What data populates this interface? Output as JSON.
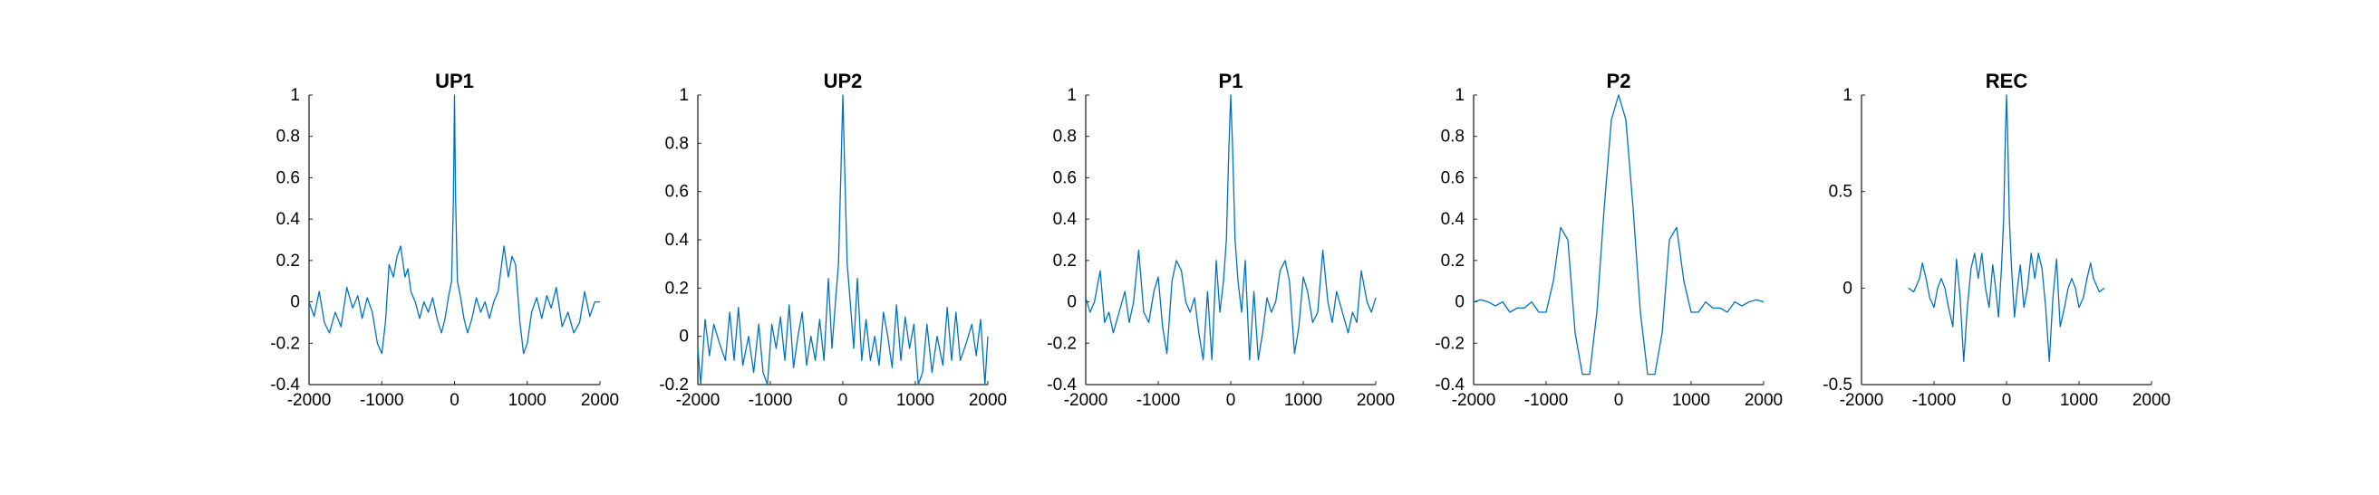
{
  "chart_data": [
    {
      "type": "line",
      "title": "UP1",
      "xlim": [
        -2000,
        2000
      ],
      "ylim": [
        -0.4,
        1
      ],
      "xticks": [
        -2000,
        -1000,
        0,
        1000,
        2000
      ],
      "yticks": [
        -0.4,
        -0.2,
        0,
        0.2,
        0.4,
        0.6,
        0.8,
        1
      ],
      "xtick_labels": [
        "-2000",
        "-1000",
        "0",
        "1000",
        "2000"
      ],
      "ytick_labels": [
        "-0.4",
        "-0.2",
        "0",
        "0.2",
        "0.4",
        "0.6",
        "0.8",
        "1"
      ],
      "line_color": "#0072BD",
      "series": [
        {
          "x": [
            -2000,
            -1930,
            -1860,
            -1790,
            -1720,
            -1640,
            -1560,
            -1480,
            -1400,
            -1330,
            -1270,
            -1200,
            -1130,
            -1060,
            -1000,
            -950,
            -900,
            -840,
            -790,
            -740,
            -680,
            -640,
            -600,
            -540,
            -480,
            -420,
            -360,
            -300,
            -240,
            -180,
            -130,
            -80,
            -40,
            -15,
            0,
            15,
            40,
            80,
            130,
            180,
            240,
            300,
            360,
            420,
            480,
            540,
            600,
            640,
            680,
            740,
            790,
            840,
            900,
            950,
            1000,
            1060,
            1130,
            1200,
            1270,
            1330,
            1400,
            1480,
            1560,
            1640,
            1720,
            1790,
            1860,
            1930,
            2000
          ],
          "y": [
            0.0,
            -0.07,
            0.05,
            -0.1,
            -0.15,
            -0.05,
            -0.12,
            0.07,
            -0.03,
            0.03,
            -0.08,
            0.02,
            -0.05,
            -0.2,
            -0.25,
            -0.1,
            0.18,
            0.12,
            0.22,
            0.27,
            0.12,
            0.16,
            0.05,
            0.0,
            -0.08,
            0.0,
            -0.05,
            0.02,
            -0.08,
            -0.15,
            -0.08,
            0.03,
            0.1,
            0.5,
            1.0,
            0.5,
            0.1,
            0.03,
            -0.08,
            -0.15,
            -0.08,
            0.02,
            -0.05,
            0.0,
            -0.08,
            0.0,
            0.05,
            0.16,
            0.27,
            0.12,
            0.22,
            0.18,
            -0.1,
            -0.25,
            -0.2,
            -0.05,
            0.02,
            -0.08,
            0.03,
            -0.03,
            0.07,
            -0.12,
            -0.05,
            -0.15,
            -0.1,
            0.05,
            -0.07,
            0.0,
            0.0
          ]
        }
      ]
    },
    {
      "type": "line",
      "title": "UP2",
      "xlim": [
        -2000,
        2000
      ],
      "ylim": [
        -0.2,
        1
      ],
      "xticks": [
        -2000,
        -1000,
        0,
        1000,
        2000
      ],
      "yticks": [
        -0.2,
        0,
        0.2,
        0.4,
        0.6,
        0.8,
        1
      ],
      "xtick_labels": [
        "-2000",
        "-1000",
        "0",
        "1000",
        "2000"
      ],
      "ytick_labels": [
        "-0.2",
        "0",
        "0.2",
        "0.4",
        "0.6",
        "0.8",
        "1"
      ],
      "line_color": "#0072BD",
      "series": [
        {
          "x": [
            -2000,
            -1960,
            -1900,
            -1840,
            -1780,
            -1700,
            -1620,
            -1560,
            -1500,
            -1440,
            -1380,
            -1300,
            -1230,
            -1160,
            -1100,
            -1040,
            -980,
            -920,
            -860,
            -800,
            -740,
            -680,
            -620,
            -560,
            -500,
            -440,
            -380,
            -320,
            -260,
            -200,
            -150,
            -100,
            -60,
            -25,
            0,
            25,
            60,
            100,
            150,
            200,
            260,
            320,
            380,
            440,
            500,
            560,
            620,
            680,
            740,
            800,
            860,
            920,
            980,
            1040,
            1100,
            1160,
            1230,
            1300,
            1380,
            1440,
            1500,
            1560,
            1620,
            1700,
            1780,
            1840,
            1900,
            1960,
            2000
          ],
          "y": [
            -0.05,
            -0.2,
            0.07,
            -0.08,
            0.05,
            -0.03,
            -0.1,
            0.1,
            -0.1,
            0.12,
            -0.12,
            0.0,
            -0.15,
            0.05,
            -0.15,
            -0.2,
            0.05,
            -0.05,
            0.08,
            -0.1,
            0.13,
            -0.13,
            0.0,
            0.1,
            -0.12,
            0.0,
            -0.1,
            0.07,
            -0.1,
            0.24,
            -0.05,
            0.15,
            0.3,
            0.7,
            1.0,
            0.7,
            0.3,
            0.15,
            -0.05,
            0.24,
            -0.1,
            0.07,
            -0.1,
            0.0,
            -0.12,
            0.1,
            0.0,
            -0.13,
            0.13,
            -0.1,
            0.08,
            -0.05,
            0.05,
            -0.2,
            -0.15,
            0.05,
            -0.15,
            0.0,
            -0.12,
            0.12,
            -0.1,
            0.1,
            -0.1,
            -0.03,
            0.05,
            -0.08,
            0.07,
            -0.2,
            0.0
          ]
        }
      ]
    },
    {
      "type": "line",
      "title": "P1",
      "xlim": [
        -2000,
        2000
      ],
      "ylim": [
        -0.4,
        1
      ],
      "xticks": [
        -2000,
        -1000,
        0,
        1000,
        2000
      ],
      "yticks": [
        -0.4,
        -0.2,
        0,
        0.2,
        0.4,
        0.6,
        0.8,
        1
      ],
      "xtick_labels": [
        "-2000",
        "-1000",
        "0",
        "1000",
        "2000"
      ],
      "ytick_labels": [
        "-0.4",
        "-0.2",
        "0",
        "0.2",
        "0.4",
        "0.6",
        "0.8",
        "1"
      ],
      "line_color": "#0072BD",
      "series": [
        {
          "x": [
            -2000,
            -1940,
            -1880,
            -1800,
            -1740,
            -1680,
            -1620,
            -1540,
            -1460,
            -1400,
            -1340,
            -1270,
            -1200,
            -1130,
            -1060,
            -1000,
            -940,
            -880,
            -810,
            -750,
            -680,
            -620,
            -560,
            -500,
            -440,
            -380,
            -320,
            -260,
            -200,
            -150,
            -100,
            -60,
            -25,
            0,
            25,
            60,
            100,
            150,
            200,
            260,
            320,
            380,
            440,
            500,
            560,
            620,
            680,
            750,
            810,
            880,
            940,
            1000,
            1060,
            1130,
            1200,
            1270,
            1340,
            1400,
            1460,
            1540,
            1620,
            1680,
            1740,
            1800,
            1880,
            1940,
            2000
          ],
          "y": [
            0.02,
            -0.05,
            0.0,
            0.15,
            -0.1,
            -0.05,
            -0.15,
            -0.05,
            0.05,
            -0.1,
            0.0,
            0.25,
            -0.05,
            -0.1,
            0.05,
            0.12,
            -0.12,
            -0.25,
            0.1,
            0.2,
            0.15,
            0.0,
            -0.05,
            0.02,
            -0.15,
            -0.28,
            0.05,
            -0.28,
            0.2,
            -0.05,
            0.1,
            0.3,
            0.75,
            1.0,
            0.75,
            0.3,
            0.1,
            -0.05,
            0.2,
            -0.28,
            0.05,
            -0.28,
            -0.15,
            0.02,
            -0.05,
            0.0,
            0.15,
            0.2,
            0.1,
            -0.25,
            -0.12,
            0.12,
            0.05,
            -0.1,
            -0.05,
            0.25,
            0.0,
            -0.1,
            0.05,
            -0.05,
            -0.15,
            -0.05,
            -0.1,
            0.15,
            0.0,
            -0.05,
            0.02
          ]
        }
      ]
    },
    {
      "type": "line",
      "title": "P2",
      "xlim": [
        -2000,
        2000
      ],
      "ylim": [
        -0.4,
        1
      ],
      "xticks": [
        -2000,
        -1000,
        0,
        1000,
        2000
      ],
      "yticks": [
        -0.4,
        -0.2,
        0,
        0.2,
        0.4,
        0.6,
        0.8,
        1
      ],
      "xtick_labels": [
        "-2000",
        "-1000",
        "0",
        "1000",
        "2000"
      ],
      "ytick_labels": [
        "-0.4",
        "-0.2",
        "0",
        "0.2",
        "0.4",
        "0.6",
        "0.8",
        "1"
      ],
      "line_color": "#0072BD",
      "series": [
        {
          "x": [
            -2000,
            -1900,
            -1800,
            -1700,
            -1600,
            -1500,
            -1400,
            -1300,
            -1200,
            -1100,
            -1000,
            -900,
            -800,
            -700,
            -600,
            -500,
            -400,
            -300,
            -200,
            -100,
            0,
            100,
            200,
            300,
            400,
            500,
            600,
            700,
            800,
            900,
            1000,
            1100,
            1200,
            1300,
            1400,
            1500,
            1600,
            1700,
            1800,
            1900,
            2000
          ],
          "y": [
            0.0,
            0.01,
            0.0,
            -0.02,
            0.0,
            -0.05,
            -0.03,
            -0.03,
            0.0,
            -0.05,
            -0.05,
            0.1,
            0.36,
            0.3,
            -0.15,
            -0.35,
            -0.35,
            -0.05,
            0.45,
            0.88,
            1.0,
            0.88,
            0.45,
            -0.05,
            -0.35,
            -0.35,
            -0.15,
            0.3,
            0.36,
            0.1,
            -0.05,
            -0.05,
            0.0,
            -0.03,
            -0.03,
            -0.05,
            0.0,
            -0.02,
            0.0,
            0.01,
            0.0
          ]
        }
      ]
    },
    {
      "type": "line",
      "title": "REC",
      "xlim": [
        -2000,
        2000
      ],
      "ylim": [
        -0.5,
        1
      ],
      "xticks": [
        -2000,
        -1000,
        0,
        1000,
        2000
      ],
      "yticks": [
        -0.5,
        0,
        0.5,
        1
      ],
      "xtick_labels": [
        "-2000",
        "-1000",
        "0",
        "1000",
        "2000"
      ],
      "ytick_labels": [
        "-0.5",
        "0",
        "0.5",
        "1"
      ],
      "line_color": "#0072BD",
      "series": [
        {
          "x": [
            -1350,
            -1280,
            -1200,
            -1160,
            -1110,
            -1060,
            -1000,
            -950,
            -900,
            -850,
            -800,
            -740,
            -690,
            -640,
            -590,
            -540,
            -490,
            -440,
            -390,
            -340,
            -290,
            -240,
            -190,
            -150,
            -110,
            -70,
            -40,
            -15,
            0,
            15,
            40,
            70,
            110,
            150,
            190,
            240,
            290,
            340,
            390,
            440,
            490,
            540,
            590,
            640,
            690,
            740,
            800,
            850,
            900,
            950,
            1000,
            1060,
            1110,
            1160,
            1200,
            1280,
            1350
          ],
          "y": [
            0.0,
            -0.02,
            0.05,
            0.13,
            0.05,
            -0.05,
            -0.1,
            0.0,
            0.05,
            0.0,
            -0.1,
            -0.2,
            0.15,
            -0.05,
            -0.38,
            -0.1,
            0.1,
            0.18,
            0.05,
            0.18,
            0.0,
            -0.1,
            0.12,
            0.0,
            -0.15,
            0.1,
            0.35,
            0.8,
            1.0,
            0.8,
            0.35,
            0.1,
            -0.15,
            0.0,
            0.12,
            -0.1,
            0.0,
            0.18,
            0.05,
            0.18,
            0.1,
            -0.1,
            -0.38,
            -0.05,
            0.15,
            -0.2,
            -0.1,
            0.0,
            0.05,
            0.0,
            -0.1,
            -0.05,
            0.05,
            0.13,
            0.05,
            -0.02,
            0.0
          ]
        }
      ]
    }
  ]
}
